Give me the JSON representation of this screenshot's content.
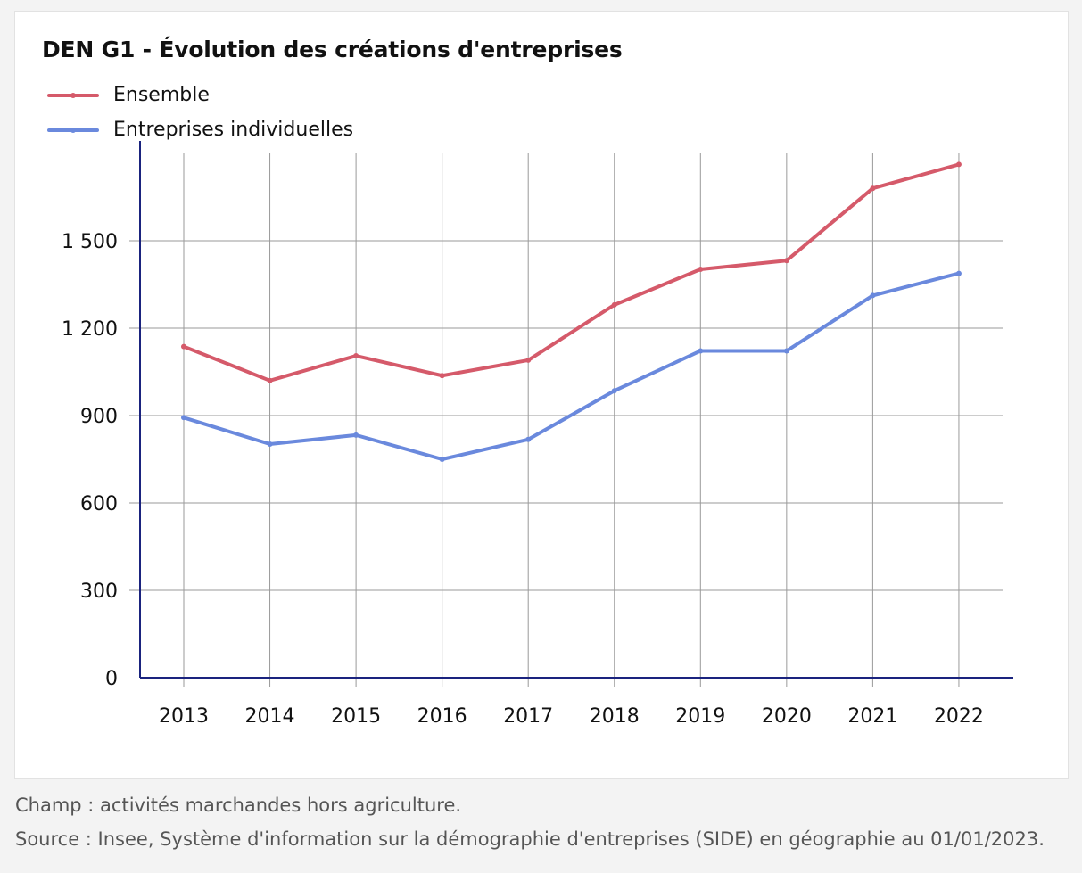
{
  "chart_data": {
    "type": "line",
    "title": "DEN G1 - Évolution des créations d'entreprises",
    "categories": [
      "2013",
      "2014",
      "2015",
      "2016",
      "2017",
      "2018",
      "2019",
      "2020",
      "2021",
      "2022"
    ],
    "series": [
      {
        "name": "Ensemble",
        "color": "#d55a6a",
        "values": [
          1137,
          1020,
          1105,
          1037,
          1090,
          1280,
          1402,
          1432,
          1680,
          1762
        ]
      },
      {
        "name": "Entreprises individuelles",
        "color": "#6a89dd",
        "values": [
          893,
          802,
          833,
          750,
          818,
          985,
          1122,
          1122,
          1312,
          1388
        ]
      }
    ],
    "yticks": [
      0,
      300,
      600,
      900,
      1200,
      1500
    ],
    "ytick_labels": [
      "0",
      "300",
      "600",
      "900",
      "1 200",
      "1 500"
    ],
    "ylim": [
      0,
      1800
    ],
    "xlabel": "",
    "ylabel": "",
    "grid": true,
    "legend_position": "top-left",
    "axis_color": "#1a237e",
    "grid_color": "#9a9a9a"
  },
  "footnotes": {
    "champ": "Champ : activités marchandes hors agriculture.",
    "source": "Source : Insee, Système d'information sur la démographie d'entreprises (SIDE) en géographie au 01/01/2023."
  }
}
